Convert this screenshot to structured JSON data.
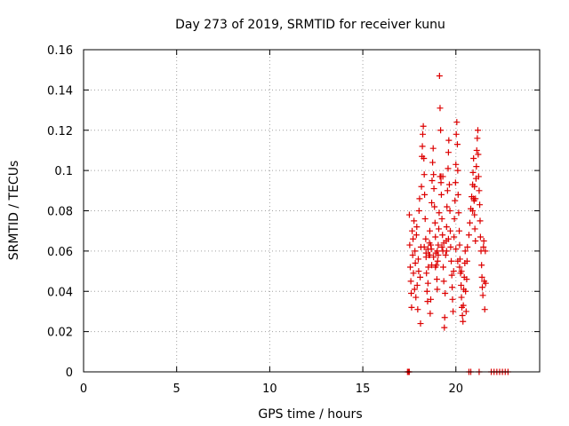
{
  "chart_data": {
    "type": "scatter",
    "title": "Day 273 of 2019, SRMTID for receiver kunu",
    "xlabel": "GPS time / hours",
    "ylabel": "SRMTID / TECUs",
    "xlim": [
      0,
      24.5
    ],
    "ylim": [
      0,
      0.16
    ],
    "grid": true,
    "marker": "+",
    "color": "#dd0000",
    "x_ticks": [
      {
        "value": 0,
        "label": "0"
      },
      {
        "value": 5,
        "label": "5"
      },
      {
        "value": 10,
        "label": "10"
      },
      {
        "value": 15,
        "label": "15"
      },
      {
        "value": 20,
        "label": "20"
      }
    ],
    "y_ticks": [
      {
        "value": 0,
        "label": "0"
      },
      {
        "value": 0.02,
        "label": "0.02"
      },
      {
        "value": 0.04,
        "label": "0.04"
      },
      {
        "value": 0.06,
        "label": "0.06"
      },
      {
        "value": 0.08,
        "label": "0.08"
      },
      {
        "value": 0.1,
        "label": "0.1"
      },
      {
        "value": 0.12,
        "label": "0.12"
      },
      {
        "value": 0.14,
        "label": "0.14"
      },
      {
        "value": 0.16,
        "label": "0.16"
      }
    ],
    "points": [
      [
        17.4,
        0.0
      ],
      [
        17.45,
        0.0
      ],
      [
        17.5,
        0.0
      ],
      [
        20.7,
        0.0
      ],
      [
        20.8,
        0.0
      ],
      [
        21.25,
        0.0
      ],
      [
        21.9,
        0.0
      ],
      [
        22.05,
        0.0
      ],
      [
        22.2,
        0.0
      ],
      [
        22.35,
        0.0
      ],
      [
        22.5,
        0.0
      ],
      [
        22.65,
        0.0
      ],
      [
        22.8,
        0.0
      ],
      [
        17.5,
        0.078
      ],
      [
        17.52,
        0.063
      ],
      [
        17.55,
        0.052
      ],
      [
        17.58,
        0.045
      ],
      [
        17.6,
        0.039
      ],
      [
        17.62,
        0.032
      ],
      [
        17.65,
        0.07
      ],
      [
        17.68,
        0.058
      ],
      [
        17.7,
        0.066
      ],
      [
        17.72,
        0.049
      ],
      [
        17.75,
        0.075
      ],
      [
        17.78,
        0.041
      ],
      [
        17.8,
        0.06
      ],
      [
        17.82,
        0.054
      ],
      [
        17.85,
        0.037
      ],
      [
        17.88,
        0.068
      ],
      [
        17.9,
        0.072
      ],
      [
        17.92,
        0.043
      ],
      [
        17.95,
        0.031
      ],
      [
        17.98,
        0.056
      ],
      [
        18.0,
        0.05
      ],
      [
        18.02,
        0.08
      ],
      [
        18.05,
        0.086
      ],
      [
        18.08,
        0.047
      ],
      [
        18.1,
        0.024
      ],
      [
        18.12,
        0.062
      ],
      [
        18.15,
        0.092
      ],
      [
        18.18,
        0.107
      ],
      [
        18.2,
        0.112
      ],
      [
        18.22,
        0.118
      ],
      [
        18.25,
        0.122
      ],
      [
        18.28,
        0.106
      ],
      [
        18.3,
        0.098
      ],
      [
        18.32,
        0.088
      ],
      [
        18.35,
        0.076
      ],
      [
        18.38,
        0.066
      ],
      [
        18.4,
        0.057
      ],
      [
        18.42,
        0.049
      ],
      [
        18.45,
        0.04
      ],
      [
        18.48,
        0.035
      ],
      [
        18.5,
        0.044
      ],
      [
        18.52,
        0.052
      ],
      [
        18.55,
        0.058
      ],
      [
        18.58,
        0.064
      ],
      [
        18.6,
        0.07
      ],
      [
        18.62,
        0.029
      ],
      [
        18.65,
        0.036
      ],
      [
        18.68,
        0.061
      ],
      [
        18.7,
        0.084
      ],
      [
        18.72,
        0.095
      ],
      [
        18.75,
        0.104
      ],
      [
        18.78,
        0.111
      ],
      [
        18.8,
        0.098
      ],
      [
        18.82,
        0.091
      ],
      [
        18.85,
        0.082
      ],
      [
        18.88,
        0.074
      ],
      [
        18.9,
        0.067
      ],
      [
        18.92,
        0.059
      ],
      [
        18.95,
        0.053
      ],
      [
        18.98,
        0.046
      ],
      [
        19.0,
        0.041
      ],
      [
        19.02,
        0.055
      ],
      [
        19.05,
        0.063
      ],
      [
        19.08,
        0.071
      ],
      [
        19.1,
        0.079
      ],
      [
        19.12,
        0.147
      ],
      [
        19.15,
        0.131
      ],
      [
        19.18,
        0.12
      ],
      [
        19.2,
        0.097
      ],
      [
        19.22,
        0.088
      ],
      [
        19.25,
        0.076
      ],
      [
        19.28,
        0.068
      ],
      [
        19.3,
        0.06
      ],
      [
        19.32,
        0.052
      ],
      [
        19.35,
        0.045
      ],
      [
        19.38,
        0.022
      ],
      [
        19.4,
        0.027
      ],
      [
        19.42,
        0.039
      ],
      [
        19.45,
        0.058
      ],
      [
        19.48,
        0.065
      ],
      [
        19.5,
        0.072
      ],
      [
        19.52,
        0.082
      ],
      [
        19.55,
        0.09
      ],
      [
        19.58,
        0.101
      ],
      [
        19.6,
        0.109
      ],
      [
        19.62,
        0.115
      ],
      [
        19.65,
        0.093
      ],
      [
        19.68,
        0.08
      ],
      [
        19.7,
        0.07
      ],
      [
        19.72,
        0.062
      ],
      [
        19.75,
        0.055
      ],
      [
        19.78,
        0.048
      ],
      [
        19.8,
        0.042
      ],
      [
        19.82,
        0.036
      ],
      [
        19.85,
        0.03
      ],
      [
        19.88,
        0.05
      ],
      [
        19.9,
        0.067
      ],
      [
        19.92,
        0.076
      ],
      [
        19.95,
        0.085
      ],
      [
        19.98,
        0.094
      ],
      [
        20.0,
        0.103
      ],
      [
        20.02,
        0.118
      ],
      [
        20.05,
        0.124
      ],
      [
        20.08,
        0.113
      ],
      [
        20.1,
        0.1
      ],
      [
        20.12,
        0.088
      ],
      [
        20.15,
        0.079
      ],
      [
        20.18,
        0.07
      ],
      [
        20.2,
        0.063
      ],
      [
        20.22,
        0.056
      ],
      [
        20.25,
        0.049
      ],
      [
        20.28,
        0.043
      ],
      [
        20.3,
        0.037
      ],
      [
        20.32,
        0.032
      ],
      [
        20.35,
        0.028
      ],
      [
        20.38,
        0.025
      ],
      [
        20.4,
        0.033
      ],
      [
        20.42,
        0.041
      ],
      [
        20.45,
        0.047
      ],
      [
        20.48,
        0.054
      ],
      [
        20.5,
        0.06
      ],
      [
        20.52,
        0.04
      ],
      [
        20.55,
        0.03
      ],
      [
        20.58,
        0.046
      ],
      [
        20.6,
        0.055
      ],
      [
        20.62,
        0.062
      ],
      [
        20.7,
        0.068
      ],
      [
        20.75,
        0.074
      ],
      [
        20.8,
        0.081
      ],
      [
        20.85,
        0.087
      ],
      [
        20.9,
        0.093
      ],
      [
        20.92,
        0.099
      ],
      [
        20.95,
        0.106
      ],
      [
        20.98,
        0.085
      ],
      [
        21.0,
        0.078
      ],
      [
        21.02,
        0.071
      ],
      [
        21.05,
        0.065
      ],
      [
        21.08,
        0.096
      ],
      [
        21.1,
        0.102
      ],
      [
        21.12,
        0.11
      ],
      [
        21.15,
        0.116
      ],
      [
        21.18,
        0.12
      ],
      [
        21.2,
        0.108
      ],
      [
        21.22,
        0.097
      ],
      [
        21.25,
        0.09
      ],
      [
        21.28,
        0.083
      ],
      [
        21.3,
        0.075
      ],
      [
        21.32,
        0.067
      ],
      [
        21.35,
        0.06
      ],
      [
        21.38,
        0.053
      ],
      [
        21.4,
        0.047
      ],
      [
        21.42,
        0.042
      ],
      [
        21.45,
        0.038
      ],
      [
        21.48,
        0.062
      ],
      [
        21.5,
        0.065
      ],
      [
        21.52,
        0.045
      ],
      [
        21.55,
        0.031
      ],
      [
        21.58,
        0.06
      ],
      [
        21.6,
        0.044
      ],
      [
        18.6,
        0.058
      ],
      [
        18.65,
        0.063
      ],
      [
        19.0,
        0.06
      ],
      [
        19.05,
        0.058
      ],
      [
        19.25,
        0.062
      ],
      [
        19.35,
        0.064
      ],
      [
        19.5,
        0.06
      ],
      [
        19.6,
        0.066
      ],
      [
        20.0,
        0.061
      ],
      [
        20.1,
        0.055
      ],
      [
        20.2,
        0.052
      ],
      [
        20.3,
        0.05
      ],
      [
        18.9,
        0.052
      ],
      [
        18.7,
        0.053
      ],
      [
        18.8,
        0.057
      ],
      [
        18.5,
        0.061
      ],
      [
        18.4,
        0.059
      ],
      [
        18.3,
        0.062
      ],
      [
        19.15,
        0.097
      ],
      [
        19.2,
        0.094
      ],
      [
        19.3,
        0.097
      ],
      [
        20.9,
        0.08
      ],
      [
        20.95,
        0.086
      ],
      [
        21.0,
        0.092
      ],
      [
        21.05,
        0.086
      ]
    ]
  }
}
